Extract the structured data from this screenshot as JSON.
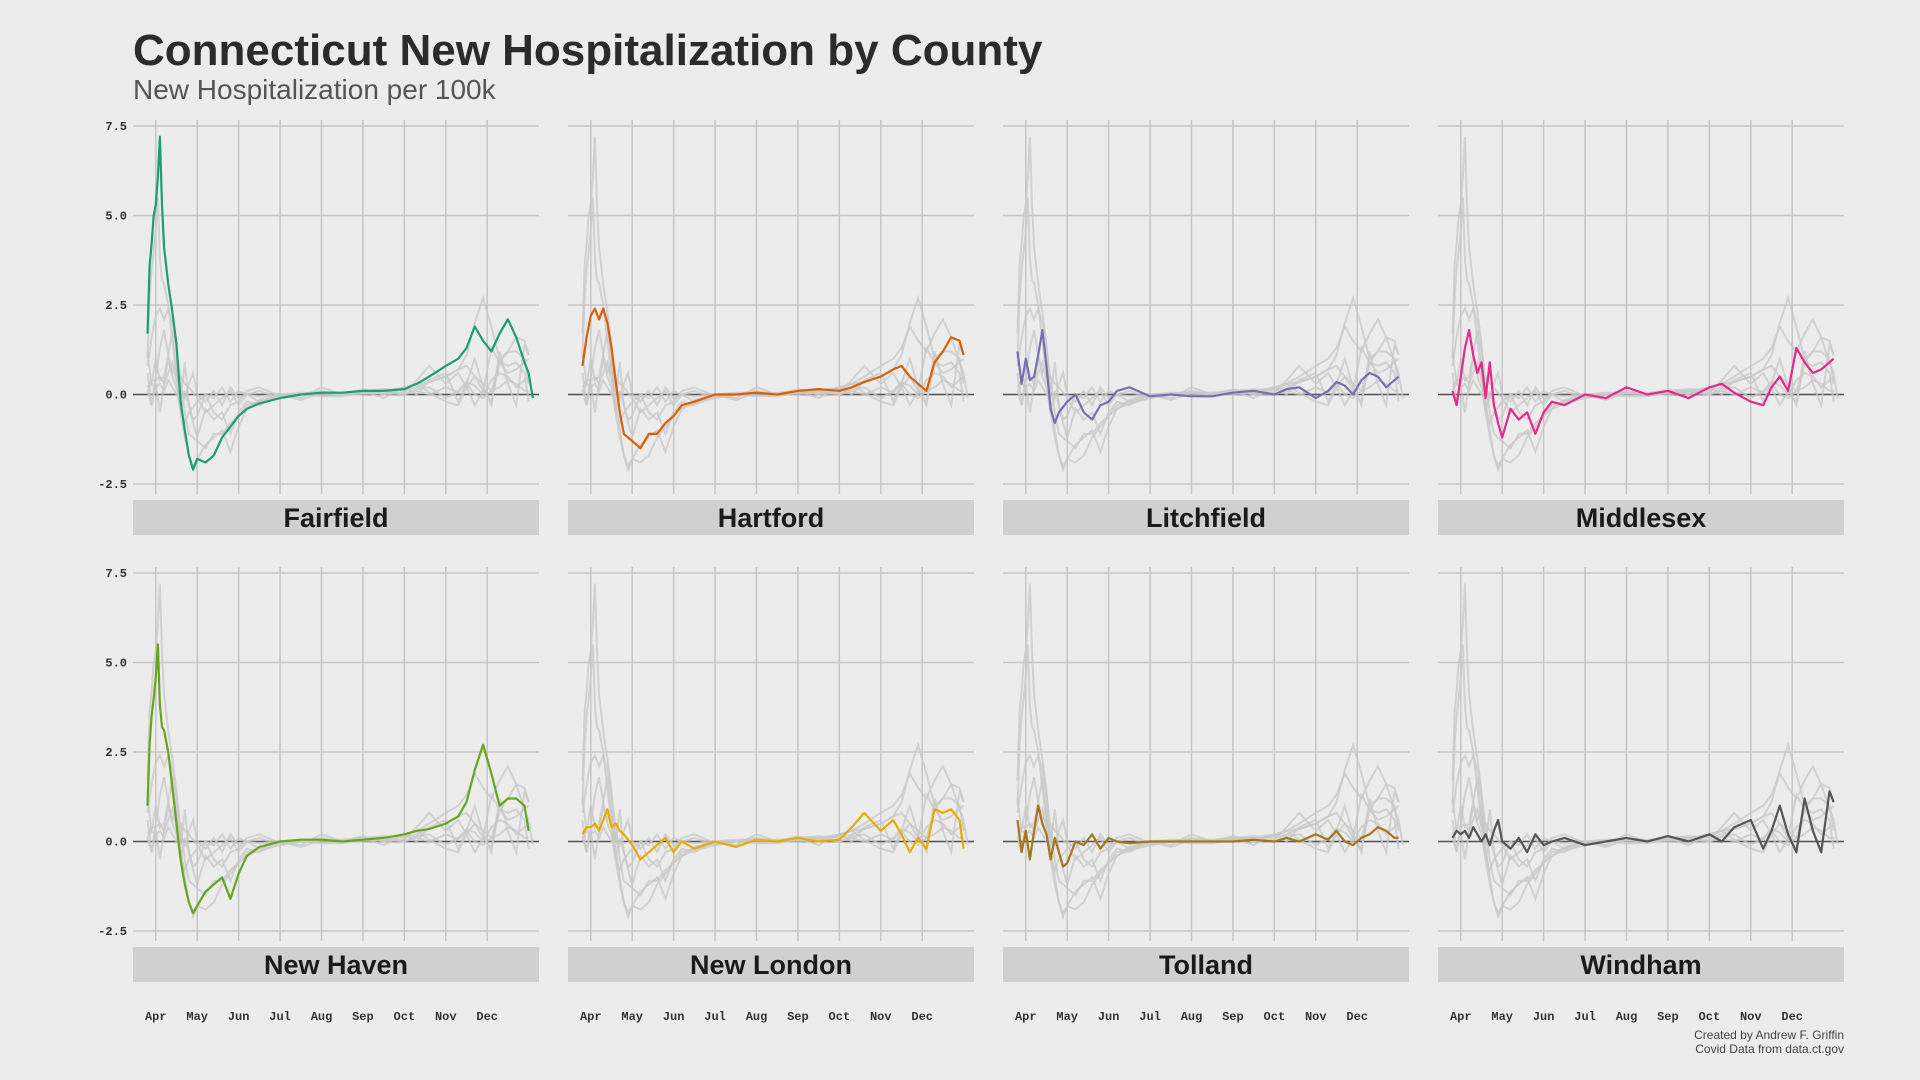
{
  "chart_data": {
    "type": "line",
    "title": "Connecticut New Hospitalization by County",
    "subtitle": "New Hospitalization per 100k",
    "caption": [
      "Created by Andrew F. Griffin",
      "Covid Data from data.ct.gov"
    ],
    "xlabel": "",
    "ylabel": "",
    "x_ticks": [
      "Apr",
      "May",
      "Jun",
      "Jul",
      "Aug",
      "Sep",
      "Oct",
      "Nov",
      "Dec"
    ],
    "x_range": [
      0,
      9.25
    ],
    "y_ticks": [
      -2.5,
      0.0,
      2.5,
      5.0,
      7.5
    ],
    "y_tick_labels": [
      "-2.5",
      "0.0",
      "2.5",
      "5.0",
      "7.5"
    ],
    "ylim": [
      -2.5,
      7.5
    ],
    "grid": true,
    "layout": "facets 2 rows x 4 columns, strip labels below each panel",
    "background_series_color": "#c8c8c8",
    "zero_line_color": "#555555",
    "series": [
      {
        "name": "Fairfield",
        "color": "#1b9e77",
        "x": [
          -0.2,
          -0.15,
          -0.1,
          -0.05,
          0.0,
          0.05,
          0.1,
          0.15,
          0.2,
          0.3,
          0.4,
          0.5,
          0.6,
          0.7,
          0.8,
          0.9,
          1.0,
          1.2,
          1.4,
          1.6,
          1.8,
          2.0,
          2.2,
          2.5,
          3.0,
          3.5,
          4.0,
          4.5,
          5.0,
          5.5,
          6.0,
          6.3,
          6.6,
          7.0,
          7.3,
          7.5,
          7.7,
          7.9,
          8.1,
          8.3,
          8.5,
          8.7,
          8.9,
          9.0,
          9.1
        ],
        "values": [
          1.7,
          3.6,
          4.2,
          5.0,
          5.3,
          6.1,
          7.2,
          5.3,
          4.1,
          3.1,
          2.3,
          1.4,
          -0.2,
          -1.0,
          -1.7,
          -2.1,
          -1.8,
          -1.9,
          -1.7,
          -1.2,
          -0.9,
          -0.6,
          -0.4,
          -0.25,
          -0.1,
          0.0,
          0.05,
          0.05,
          0.1,
          0.1,
          0.15,
          0.3,
          0.5,
          0.8,
          1.0,
          1.3,
          1.9,
          1.5,
          1.2,
          1.7,
          2.1,
          1.6,
          0.9,
          0.6,
          -0.1
        ]
      },
      {
        "name": "Hartford",
        "color": "#d95f02",
        "x": [
          -0.2,
          -0.1,
          0.0,
          0.1,
          0.2,
          0.3,
          0.4,
          0.5,
          0.6,
          0.7,
          0.8,
          1.0,
          1.2,
          1.4,
          1.6,
          1.8,
          2.0,
          2.2,
          2.5,
          3.0,
          3.5,
          4.0,
          4.5,
          5.0,
          5.5,
          6.0,
          6.3,
          6.6,
          7.0,
          7.3,
          7.5,
          7.7,
          7.9,
          8.1,
          8.3,
          8.5,
          8.7,
          8.9,
          9.0
        ],
        "values": [
          0.8,
          1.6,
          2.2,
          2.4,
          2.1,
          2.4,
          2.0,
          1.3,
          0.4,
          -0.5,
          -1.1,
          -1.3,
          -1.5,
          -1.1,
          -1.1,
          -0.8,
          -0.6,
          -0.3,
          -0.2,
          0.0,
          0.0,
          0.05,
          0.0,
          0.1,
          0.15,
          0.1,
          0.2,
          0.35,
          0.5,
          0.7,
          0.8,
          0.5,
          0.3,
          0.1,
          0.9,
          1.2,
          1.6,
          1.5,
          1.1
        ]
      },
      {
        "name": "Litchfield",
        "color": "#7570b3",
        "x": [
          -0.2,
          -0.1,
          0.0,
          0.1,
          0.2,
          0.3,
          0.4,
          0.5,
          0.6,
          0.7,
          0.8,
          1.0,
          1.2,
          1.4,
          1.6,
          1.8,
          2.0,
          2.2,
          2.5,
          3.0,
          3.5,
          4.0,
          4.5,
          5.0,
          5.5,
          6.0,
          6.3,
          6.6,
          7.0,
          7.3,
          7.5,
          7.7,
          7.9,
          8.1,
          8.3,
          8.5,
          8.7,
          8.9,
          9.0
        ],
        "values": [
          1.2,
          0.3,
          1.0,
          0.4,
          0.5,
          1.1,
          1.8,
          0.8,
          -0.4,
          -0.8,
          -0.5,
          -0.2,
          0.0,
          -0.5,
          -0.7,
          -0.3,
          -0.2,
          0.1,
          0.2,
          -0.05,
          0.0,
          -0.05,
          -0.05,
          0.05,
          0.1,
          0.0,
          0.15,
          0.2,
          -0.1,
          0.1,
          0.35,
          0.25,
          0.0,
          0.4,
          0.6,
          0.5,
          0.2,
          0.4,
          0.5
        ]
      },
      {
        "name": "Middlesex",
        "color": "#e7298a",
        "x": [
          -0.2,
          -0.1,
          0.0,
          0.1,
          0.2,
          0.3,
          0.4,
          0.5,
          0.6,
          0.7,
          0.8,
          0.9,
          1.0,
          1.2,
          1.4,
          1.6,
          1.8,
          2.0,
          2.2,
          2.5,
          3.0,
          3.5,
          4.0,
          4.5,
          5.0,
          5.5,
          6.0,
          6.3,
          6.6,
          7.0,
          7.3,
          7.5,
          7.7,
          7.9,
          8.1,
          8.3,
          8.5,
          8.7,
          8.9,
          9.0
        ],
        "values": [
          0.1,
          -0.3,
          0.5,
          1.3,
          1.8,
          1.1,
          0.6,
          0.9,
          -0.1,
          0.9,
          -0.3,
          -0.8,
          -1.2,
          -0.4,
          -0.7,
          -0.5,
          -1.1,
          -0.5,
          -0.2,
          -0.3,
          0.0,
          -0.1,
          0.2,
          0.0,
          0.1,
          -0.1,
          0.2,
          0.3,
          0.05,
          -0.2,
          -0.3,
          0.2,
          0.5,
          0.1,
          1.3,
          0.9,
          0.6,
          0.7,
          0.9,
          1.0
        ]
      },
      {
        "name": "New Haven",
        "color": "#66a61e",
        "x": [
          -0.2,
          -0.15,
          -0.1,
          -0.05,
          0.0,
          0.05,
          0.1,
          0.15,
          0.2,
          0.3,
          0.4,
          0.5,
          0.6,
          0.7,
          0.8,
          0.9,
          1.0,
          1.2,
          1.4,
          1.6,
          1.8,
          2.0,
          2.2,
          2.5,
          3.0,
          3.5,
          4.0,
          4.5,
          5.0,
          5.5,
          6.0,
          6.3,
          6.6,
          7.0,
          7.3,
          7.5,
          7.7,
          7.9,
          8.1,
          8.3,
          8.5,
          8.7,
          8.9,
          9.0
        ],
        "values": [
          1.0,
          2.7,
          3.5,
          4.0,
          4.6,
          5.5,
          3.8,
          3.2,
          3.1,
          2.5,
          1.5,
          0.5,
          -0.5,
          -1.2,
          -1.7,
          -2.0,
          -1.8,
          -1.4,
          -1.2,
          -1.0,
          -1.6,
          -0.9,
          -0.4,
          -0.15,
          0.0,
          0.05,
          0.05,
          0.0,
          0.05,
          0.1,
          0.2,
          0.3,
          0.35,
          0.5,
          0.7,
          1.1,
          2.0,
          2.7,
          1.9,
          1.0,
          1.2,
          1.2,
          1.0,
          0.3
        ]
      },
      {
        "name": "New London",
        "color": "#e6ab02",
        "x": [
          -0.2,
          -0.1,
          0.0,
          0.1,
          0.2,
          0.3,
          0.4,
          0.5,
          0.6,
          0.7,
          0.8,
          1.0,
          1.2,
          1.4,
          1.6,
          1.8,
          2.0,
          2.2,
          2.5,
          3.0,
          3.5,
          4.0,
          4.5,
          5.0,
          5.5,
          6.0,
          6.3,
          6.6,
          7.0,
          7.3,
          7.5,
          7.7,
          7.9,
          8.1,
          8.3,
          8.5,
          8.7,
          8.9,
          9.0
        ],
        "values": [
          0.2,
          0.4,
          0.4,
          0.5,
          0.3,
          0.6,
          0.9,
          0.4,
          0.5,
          0.3,
          0.2,
          -0.1,
          -0.5,
          -0.3,
          -0.1,
          0.1,
          -0.3,
          0.0,
          -0.2,
          0.0,
          -0.15,
          0.05,
          0.0,
          0.1,
          0.0,
          0.05,
          0.4,
          0.8,
          0.3,
          0.6,
          0.2,
          -0.3,
          0.1,
          -0.2,
          0.9,
          0.8,
          0.9,
          0.6,
          -0.2
        ]
      },
      {
        "name": "Tolland",
        "color": "#a6761d",
        "x": [
          -0.2,
          -0.1,
          0.0,
          0.1,
          0.2,
          0.3,
          0.4,
          0.5,
          0.6,
          0.7,
          0.8,
          0.9,
          1.0,
          1.2,
          1.4,
          1.6,
          1.8,
          2.0,
          2.2,
          2.5,
          3.0,
          3.5,
          4.0,
          4.5,
          5.0,
          5.5,
          6.0,
          6.3,
          6.6,
          7.0,
          7.3,
          7.5,
          7.7,
          7.9,
          8.1,
          8.3,
          8.5,
          8.7,
          8.9,
          9.0
        ],
        "values": [
          0.6,
          -0.3,
          0.3,
          -0.5,
          0.3,
          1.0,
          0.5,
          0.2,
          -0.5,
          0.1,
          -0.3,
          -0.7,
          -0.6,
          0.0,
          -0.1,
          0.2,
          -0.2,
          0.1,
          0.0,
          -0.05,
          0.0,
          0.0,
          0.0,
          0.0,
          0.0,
          0.05,
          0.0,
          0.1,
          0.0,
          0.2,
          0.05,
          0.3,
          0.0,
          -0.1,
          0.1,
          0.2,
          0.4,
          0.3,
          0.1,
          0.1
        ]
      },
      {
        "name": "Windham",
        "color": "#555555",
        "x": [
          -0.2,
          -0.1,
          0.0,
          0.1,
          0.2,
          0.3,
          0.4,
          0.5,
          0.6,
          0.7,
          0.8,
          0.9,
          1.0,
          1.2,
          1.4,
          1.6,
          1.8,
          2.0,
          2.2,
          2.5,
          3.0,
          3.5,
          4.0,
          4.5,
          5.0,
          5.5,
          6.0,
          6.3,
          6.6,
          7.0,
          7.3,
          7.5,
          7.7,
          7.9,
          8.1,
          8.3,
          8.5,
          8.7,
          8.9,
          9.0
        ],
        "values": [
          0.1,
          0.3,
          0.2,
          0.3,
          0.1,
          0.4,
          0.2,
          0.0,
          0.2,
          -0.1,
          0.3,
          0.6,
          0.0,
          -0.2,
          0.1,
          -0.3,
          0.2,
          -0.1,
          0.0,
          0.1,
          -0.1,
          0.0,
          0.1,
          0.0,
          0.15,
          0.0,
          0.2,
          0.0,
          0.4,
          0.6,
          -0.2,
          0.3,
          1.0,
          0.2,
          -0.3,
          1.2,
          0.3,
          -0.3,
          1.4,
          1.1
        ]
      }
    ]
  }
}
